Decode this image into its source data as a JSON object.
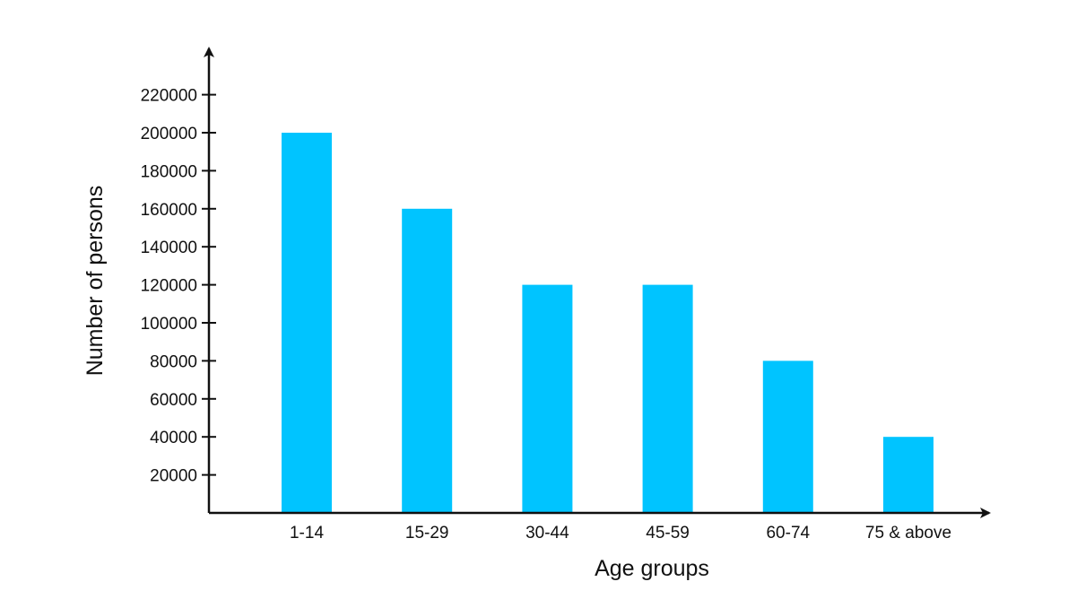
{
  "chart_data": {
    "type": "bar",
    "title": "",
    "xlabel": "Age groups",
    "ylabel": "Number of persons",
    "categories": [
      "1-14",
      "15-29",
      "30-44",
      "45-59",
      "60-74",
      "75 & above"
    ],
    "values": [
      200000,
      160000,
      120000,
      120000,
      80000,
      40000
    ],
    "ylim": [
      0,
      220000
    ],
    "yticks": [
      20000,
      40000,
      60000,
      80000,
      100000,
      120000,
      140000,
      160000,
      180000,
      200000,
      220000
    ],
    "ytick_labels": [
      "20000",
      "40000",
      "60000",
      "80000",
      "100000",
      "120000",
      "140000",
      "160000",
      "180000",
      "200000",
      "220000"
    ],
    "grid": false,
    "legend": "none",
    "bar_color": "#00C4FF",
    "axis_color": "#111111"
  }
}
